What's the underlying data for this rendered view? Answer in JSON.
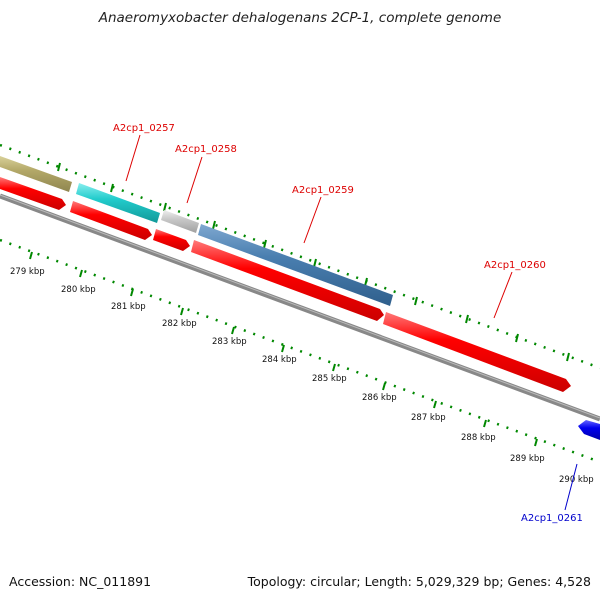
{
  "map": {
    "title": "Anaeromyxobacter dehalogenans 2CP-1, complete genome",
    "accession": "Accession: NC_011891",
    "summary": "Topology: circular; Length: 5,029,329 bp; Genes: 4,528",
    "gene_labels": [
      {
        "text": "A2cp1_0257",
        "color": "#dd0000"
      },
      {
        "text": "A2cp1_0258",
        "color": "#dd0000"
      },
      {
        "text": "A2cp1_0259",
        "color": "#dd0000"
      },
      {
        "text": "A2cp1_0260",
        "color": "#dd0000"
      },
      {
        "text": "A2cp1_0261",
        "color": "#0000cc"
      }
    ],
    "kbp_ticks": [
      "279 kbp",
      "280 kbp",
      "281 kbp",
      "282 kbp",
      "283 kbp",
      "284 kbp",
      "285 kbp",
      "286 kbp",
      "287 kbp",
      "288 kbp",
      "289 kbp",
      "290 kbp"
    ],
    "colors": {
      "cds": "#ff0000",
      "olive": "#b3a868",
      "cyan": "#22cccc",
      "grey": "#c8c8c8",
      "steelblue": "#4a7fb0",
      "blue": "#0000ee",
      "backbone": "#888888",
      "tick_green": "#008800"
    }
  }
}
